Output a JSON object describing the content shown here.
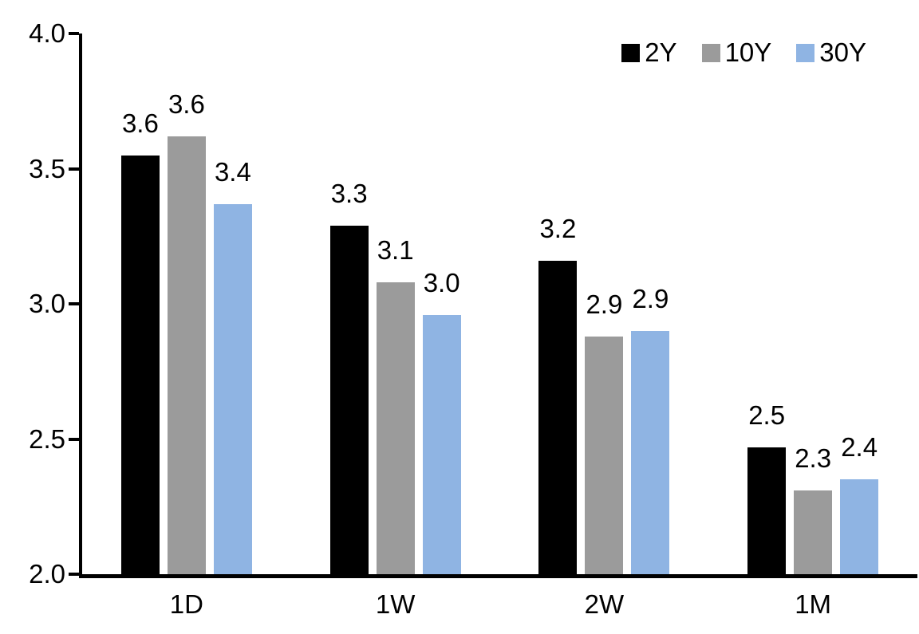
{
  "chart_data": {
    "type": "bar",
    "title": "",
    "xlabel": "",
    "ylabel": "",
    "categories": [
      "1D",
      "1W",
      "2W",
      "1M"
    ],
    "series": [
      {
        "name": "2Y",
        "color": "#000000",
        "values": [
          3.55,
          3.29,
          3.16,
          2.47
        ],
        "labels": [
          "3.6",
          "3.3",
          "3.2",
          "2.5"
        ]
      },
      {
        "name": "10Y",
        "color": "#9B9B9B",
        "values": [
          3.62,
          3.08,
          2.88,
          2.31
        ],
        "labels": [
          "3.6",
          "3.1",
          "2.9",
          "2.3"
        ]
      },
      {
        "name": "30Y",
        "color": "#8FB4E3",
        "values": [
          3.37,
          2.96,
          2.9,
          2.35
        ],
        "labels": [
          "3.4",
          "3.0",
          "2.9",
          "2.4"
        ]
      }
    ],
    "ylim": [
      2.0,
      4.0
    ],
    "ytick_step": 0.5,
    "yticks": [
      "4.0",
      "3.5",
      "3.0",
      "2.5",
      "2.0"
    ],
    "ytick_values": [
      4.0,
      3.5,
      3.0,
      2.5,
      2.0
    ],
    "grid": false,
    "legend_position": "top-right",
    "axis_color": "#000000",
    "background_color": "#ffffff"
  }
}
